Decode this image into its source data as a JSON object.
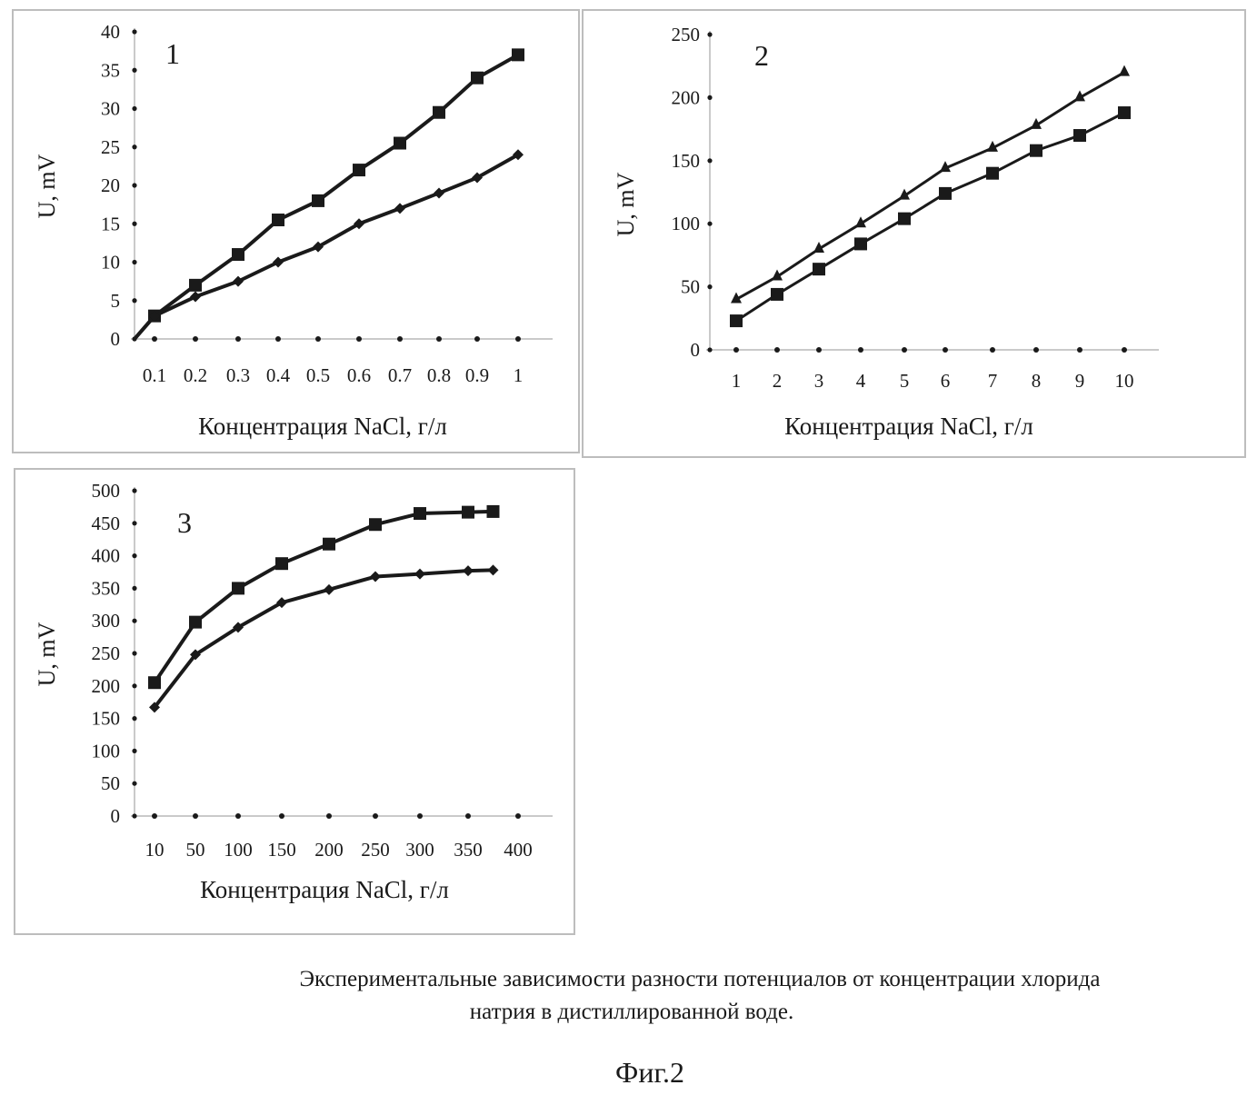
{
  "chart_data": [
    {
      "type": "line",
      "panel_label": "1",
      "xlabel": "Концентрация NaCl, г/л",
      "ylabel": "U, mV",
      "categories": [
        "0.1",
        "0.2",
        "0.3",
        "0.4",
        "0.5",
        "0.6",
        "0.7",
        "0.8",
        "0.9",
        "1"
      ],
      "yticks": [
        "0",
        "5",
        "10",
        "15",
        "20",
        "25",
        "30",
        "35",
        "40"
      ],
      "ylim": [
        0,
        40
      ],
      "grid": false,
      "series": [
        {
          "name": "square-series",
          "marker": "square",
          "origin_value": 0,
          "values": [
            3,
            7,
            11,
            15.5,
            18,
            22,
            25.5,
            29.5,
            34,
            37
          ]
        },
        {
          "name": "diamond-series",
          "marker": "diamond",
          "origin_value": 0,
          "values": [
            3,
            5.5,
            7.5,
            10,
            12,
            15,
            17,
            19,
            21,
            24
          ]
        }
      ]
    },
    {
      "type": "line",
      "panel_label": "2",
      "xlabel": "Концентрация NaCl, г/л",
      "ylabel": "U, mV",
      "categories": [
        "1",
        "2",
        "3",
        "4",
        "5",
        "6",
        "7",
        "8",
        "9",
        "10"
      ],
      "yticks": [
        "0",
        "50",
        "100",
        "150",
        "200",
        "250"
      ],
      "ylim": [
        0,
        250
      ],
      "grid": false,
      "series": [
        {
          "name": "triangle-series",
          "marker": "triangle",
          "values": [
            40,
            58,
            80,
            100,
            122,
            144,
            160,
            178,
            200,
            220
          ]
        },
        {
          "name": "square-series",
          "marker": "square",
          "values": [
            23,
            44,
            64,
            84,
            104,
            124,
            140,
            158,
            170,
            188
          ]
        }
      ]
    },
    {
      "type": "line",
      "panel_label": "3",
      "xlabel": "Концентрация NaCl, г/л",
      "ylabel": "U, mV",
      "xticks": [
        "10",
        "50",
        "100",
        "150",
        "200",
        "250",
        "300",
        "350",
        "400"
      ],
      "x": [
        10,
        50,
        100,
        150,
        200,
        250,
        300,
        350,
        375
      ],
      "yticks": [
        "0",
        "50",
        "100",
        "150",
        "200",
        "250",
        "300",
        "350",
        "400",
        "450",
        "500"
      ],
      "ylim": [
        0,
        500
      ],
      "grid": false,
      "series": [
        {
          "name": "square-series",
          "marker": "square",
          "values": [
            205,
            298,
            350,
            388,
            418,
            448,
            465,
            467,
            468
          ]
        },
        {
          "name": "diamond-series",
          "marker": "diamond",
          "values": [
            167,
            248,
            290,
            328,
            348,
            368,
            372,
            377,
            378
          ]
        }
      ]
    }
  ],
  "caption": {
    "line1": "Экспериментальные зависимости разности потенциалов от концентрации хлорида",
    "line2": "натрия в дистиллированной воде."
  },
  "figure_label": "Фиг.2",
  "colors": {
    "ink": "#1a1a1a",
    "axis": "#b8b8b8",
    "frame": "#bdbdbd"
  }
}
